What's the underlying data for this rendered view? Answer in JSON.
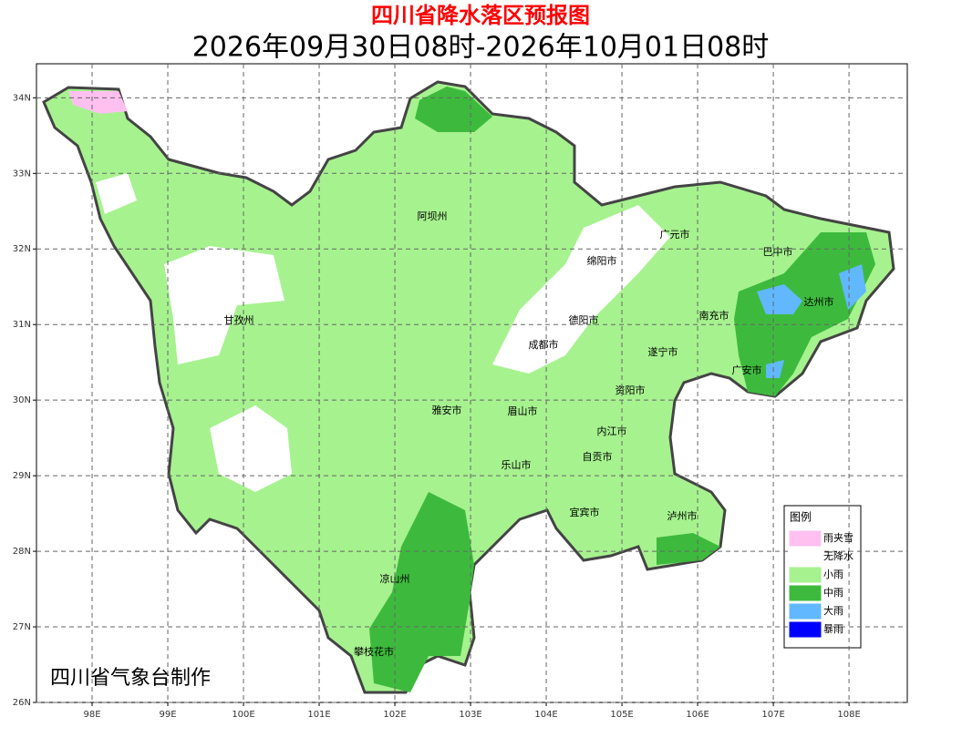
{
  "header": {
    "title": "四川省降水落区预报图",
    "subtitle": "2026年09月30日08时-2026年10月01日08时"
  },
  "map": {
    "xlim": [
      97.265,
      108.77
    ],
    "ylim": [
      26,
      34.45
    ],
    "xticks": [
      {
        "value": 98,
        "label": "98E"
      },
      {
        "value": 99,
        "label": "99E"
      },
      {
        "value": 100,
        "label": "100E"
      },
      {
        "value": 101,
        "label": "101E"
      },
      {
        "value": 102,
        "label": "102E"
      },
      {
        "value": 103,
        "label": "103E"
      },
      {
        "value": 104,
        "label": "104E"
      },
      {
        "value": 105,
        "label": "105E"
      },
      {
        "value": 106,
        "label": "106E"
      },
      {
        "value": 107,
        "label": "107E"
      },
      {
        "value": 108,
        "label": "108E"
      }
    ],
    "yticks": [
      {
        "value": 26,
        "label": "26N"
      },
      {
        "value": 27,
        "label": "27N"
      },
      {
        "value": 28,
        "label": "28N"
      },
      {
        "value": 29,
        "label": "29N"
      },
      {
        "value": 30,
        "label": "30N"
      },
      {
        "value": 31,
        "label": "31N"
      },
      {
        "value": 32,
        "label": "32N"
      },
      {
        "value": 33,
        "label": "33N"
      },
      {
        "value": 34,
        "label": "34N"
      }
    ],
    "grid": true,
    "cities": [
      "阿坝州",
      "广元市",
      "巴中市",
      "绵阳市",
      "达州市",
      "甘孜州",
      "德阳市",
      "南充市",
      "成都市",
      "遂宁市",
      "广安市",
      "资阳市",
      "雅安市",
      "眉山市",
      "内江市",
      "自贡市",
      "乐山市",
      "宜宾市",
      "泸州市",
      "凉山州",
      "攀枝花市"
    ],
    "credit": "四川省气象台制作"
  },
  "legend": {
    "title": "图例",
    "items": [
      {
        "name": "雨夹雪",
        "color": "#ffc0f0"
      },
      {
        "name": "无降水",
        "color": "#ffffff"
      },
      {
        "name": "小雨",
        "color": "#a6f28f"
      },
      {
        "name": "中雨",
        "color": "#3dba3d"
      },
      {
        "name": "大雨",
        "color": "#61b8ff"
      },
      {
        "name": "暴雨",
        "color": "#0000fe"
      }
    ]
  }
}
